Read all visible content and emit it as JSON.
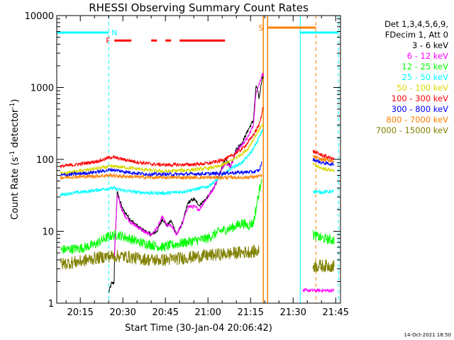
{
  "chart_data": {
    "type": "line",
    "title": "RHESSI Observing Summary Count Rates",
    "xlabel": "Start Time (30-Jan-04 20:06:42)",
    "ylabel_main": "Count Rate (s",
    "ylabel_sup1": "-1",
    "ylabel_mid": " detector",
    "ylabel_sup2": "-1",
    "ylabel_end": ")",
    "y_log": true,
    "ylim": [
      1,
      10000
    ],
    "xlim_minutes": [
      6.7,
      106.7
    ],
    "x_ticks": [
      {
        "label": "20:15",
        "m": 15
      },
      {
        "label": "20:30",
        "m": 30
      },
      {
        "label": "20:45",
        "m": 45
      },
      {
        "label": "21:00",
        "m": 60
      },
      {
        "label": "21:15",
        "m": 75
      },
      {
        "label": "21:30",
        "m": 90
      },
      {
        "label": "21:45",
        "m": 105
      }
    ],
    "y_ticks": [
      {
        "label": "1",
        "v": 1
      },
      {
        "label": "10",
        "v": 10
      },
      {
        "label": "100",
        "v": 100
      },
      {
        "label": "1000",
        "v": 1000
      },
      {
        "label": "10000",
        "v": 10000
      }
    ],
    "legend_header": [
      "Det 1,3,4,5,6,9,",
      "FDecim 1, Att 0"
    ],
    "legend_placement": "right",
    "series": [
      {
        "name": "3 - 6 keV",
        "color": "#000000",
        "points": [
          [
            25,
            1.4
          ],
          [
            26,
            1.9
          ],
          [
            26.9,
            1.9
          ],
          [
            27.1,
            5
          ],
          [
            28,
            35
          ],
          [
            30,
            20
          ],
          [
            33,
            14
          ],
          [
            36,
            11
          ],
          [
            38,
            10
          ],
          [
            40,
            9
          ],
          [
            42,
            10
          ],
          [
            44,
            15
          ],
          [
            45.5,
            12
          ],
          [
            47,
            14
          ],
          [
            49,
            9
          ],
          [
            51,
            13
          ],
          [
            53,
            25
          ],
          [
            55,
            28
          ],
          [
            57,
            23
          ],
          [
            58.8,
            27
          ],
          [
            60,
            30
          ],
          [
            62,
            40
          ],
          [
            64,
            60
          ],
          [
            66,
            100
          ],
          [
            68,
            80
          ],
          [
            70,
            140
          ],
          [
            72,
            170
          ],
          [
            74,
            250
          ],
          [
            76,
            350
          ],
          [
            77,
            1100
          ],
          [
            78,
            700
          ],
          [
            79,
            1300
          ],
          [
            79.5,
            1500
          ]
        ],
        "gaps": [
          [
            79.6,
            93.5
          ]
        ]
      },
      {
        "name": "6 - 12 keV",
        "color": "#ff00ff",
        "points": [
          [
            27,
            4
          ],
          [
            28,
            32
          ],
          [
            30,
            18
          ],
          [
            33,
            13
          ],
          [
            36,
            11
          ],
          [
            38,
            9.5
          ],
          [
            40,
            9
          ],
          [
            42,
            11
          ],
          [
            44,
            16
          ],
          [
            45.5,
            12
          ],
          [
            47,
            12
          ],
          [
            49,
            9
          ],
          [
            51,
            13
          ],
          [
            53,
            22
          ],
          [
            55,
            22
          ],
          [
            57,
            20
          ],
          [
            58.8,
            26
          ],
          [
            60,
            30
          ],
          [
            62,
            40
          ],
          [
            64,
            60
          ],
          [
            66,
            90
          ],
          [
            68,
            80
          ],
          [
            70,
            130
          ],
          [
            72,
            160
          ],
          [
            74,
            200
          ],
          [
            76,
            300
          ],
          [
            77,
            900
          ],
          [
            78,
            1100
          ],
          [
            79,
            1500
          ],
          [
            79.5,
            1550
          ]
        ],
        "extra": [
          [
            93.5,
            1.5
          ],
          [
            97,
            1.5
          ],
          [
            100,
            1.5
          ],
          [
            104.5,
            1.5
          ]
        ],
        "gaps": [
          [
            79.6,
            93.4
          ]
        ]
      },
      {
        "name": "12 - 25 keV",
        "color": "#00ff00",
        "points": [
          [
            8,
            5.5
          ],
          [
            15,
            5.8
          ],
          [
            20,
            6.5
          ],
          [
            25,
            8.5
          ],
          [
            28,
            9
          ],
          [
            32,
            8
          ],
          [
            36,
            7
          ],
          [
            40,
            6.5
          ],
          [
            44,
            6
          ],
          [
            48,
            6.5
          ],
          [
            52,
            7
          ],
          [
            56,
            7.5
          ],
          [
            60,
            8
          ],
          [
            64,
            10
          ],
          [
            68,
            11
          ],
          [
            72,
            13
          ],
          [
            74,
            12
          ],
          [
            76,
            13
          ],
          [
            78,
            35
          ],
          [
            79,
            60
          ]
        ],
        "extra": [
          [
            97,
            9
          ],
          [
            100,
            8
          ],
          [
            104.5,
            7.5
          ]
        ],
        "gaps": [
          [
            79.6,
            96.9
          ]
        ]
      },
      {
        "name": "25 - 50 keV",
        "color": "#00ffff",
        "points": [
          [
            8,
            32
          ],
          [
            12,
            34
          ],
          [
            18,
            36
          ],
          [
            22,
            38
          ],
          [
            26,
            40
          ],
          [
            30,
            37
          ],
          [
            35,
            35
          ],
          [
            40,
            34
          ],
          [
            45,
            34
          ],
          [
            50,
            35
          ],
          [
            55,
            38
          ],
          [
            60,
            42
          ],
          [
            64,
            55
          ],
          [
            68,
            75
          ],
          [
            72,
            90
          ],
          [
            74,
            110
          ],
          [
            76,
            140
          ],
          [
            78,
            200
          ],
          [
            79.5,
            270
          ]
        ],
        "extra": [
          [
            97,
            36
          ],
          [
            100,
            35
          ],
          [
            104.5,
            36
          ]
        ],
        "gaps": [
          [
            79.6,
            96.9
          ]
        ]
      },
      {
        "name": "50 - 100 keV",
        "color": "#d8d800",
        "points": [
          [
            8,
            63
          ],
          [
            12,
            66
          ],
          [
            18,
            72
          ],
          [
            22,
            76
          ],
          [
            26,
            80
          ],
          [
            30,
            78
          ],
          [
            35,
            74
          ],
          [
            40,
            70
          ],
          [
            45,
            68
          ],
          [
            50,
            70
          ],
          [
            55,
            72
          ],
          [
            60,
            75
          ],
          [
            64,
            80
          ],
          [
            68,
            95
          ],
          [
            72,
            120
          ],
          [
            74,
            140
          ],
          [
            76,
            190
          ],
          [
            78,
            260
          ],
          [
            79.5,
            300
          ]
        ],
        "extra": [
          [
            97,
            85
          ],
          [
            100,
            75
          ],
          [
            104.5,
            70
          ]
        ],
        "gaps": [
          [
            79.6,
            96.9
          ]
        ]
      },
      {
        "name": "100 - 300 keV",
        "color": "#ff0000",
        "points": [
          [
            8,
            80
          ],
          [
            12,
            83
          ],
          [
            18,
            90
          ],
          [
            22,
            96
          ],
          [
            26,
            108
          ],
          [
            30,
            100
          ],
          [
            35,
            92
          ],
          [
            40,
            86
          ],
          [
            45,
            84
          ],
          [
            50,
            84
          ],
          [
            55,
            85
          ],
          [
            60,
            88
          ],
          [
            64,
            95
          ],
          [
            68,
            110
          ],
          [
            72,
            140
          ],
          [
            74,
            170
          ],
          [
            76,
            220
          ],
          [
            78,
            300
          ],
          [
            79.5,
            550
          ]
        ],
        "extra": [
          [
            97,
            130
          ],
          [
            100,
            115
          ],
          [
            104.5,
            100
          ]
        ],
        "gaps": [
          [
            79.6,
            96.9
          ]
        ]
      },
      {
        "name": "300 - 800 keV",
        "color": "#0000ff",
        "points": [
          [
            8,
            60
          ],
          [
            12,
            62
          ],
          [
            18,
            65
          ],
          [
            22,
            68
          ],
          [
            26,
            72
          ],
          [
            30,
            68
          ],
          [
            35,
            64
          ],
          [
            40,
            62
          ],
          [
            45,
            62
          ],
          [
            50,
            62
          ],
          [
            55,
            63
          ],
          [
            60,
            63
          ],
          [
            64,
            64
          ],
          [
            68,
            65
          ],
          [
            72,
            66
          ],
          [
            76,
            67
          ],
          [
            78,
            70
          ],
          [
            79,
            90
          ]
        ],
        "extra": [
          [
            97,
            100
          ],
          [
            100,
            90
          ],
          [
            104.5,
            85
          ]
        ],
        "gaps": [
          [
            79.6,
            96.9
          ]
        ]
      },
      {
        "name": "800 - 7000 keV",
        "color": "#ff8000",
        "points": [
          [
            8,
            56
          ],
          [
            12,
            57
          ],
          [
            18,
            58
          ],
          [
            22,
            59
          ],
          [
            26,
            60
          ],
          [
            30,
            58
          ],
          [
            35,
            57
          ],
          [
            40,
            56
          ],
          [
            45,
            56
          ],
          [
            50,
            56
          ],
          [
            55,
            56
          ],
          [
            60,
            56
          ],
          [
            64,
            56
          ],
          [
            68,
            56
          ],
          [
            72,
            56
          ],
          [
            76,
            57
          ],
          [
            78,
            58
          ],
          [
            79,
            60
          ]
        ],
        "extra": [
          [
            97,
            110
          ],
          [
            100,
            100
          ],
          [
            104.5,
            95
          ]
        ],
        "gaps": [
          [
            79.6,
            96.9
          ]
        ]
      },
      {
        "name": "7000 - 15000 keV",
        "color": "#808000",
        "points": [
          [
            8,
            3.5
          ],
          [
            15,
            3.8
          ],
          [
            20,
            4.2
          ],
          [
            25,
            4.5
          ],
          [
            30,
            4.5
          ],
          [
            35,
            4.2
          ],
          [
            40,
            4.0
          ],
          [
            45,
            4.0
          ],
          [
            50,
            4.2
          ],
          [
            55,
            4.4
          ],
          [
            60,
            4.6
          ],
          [
            65,
            4.8
          ],
          [
            70,
            5.0
          ],
          [
            75,
            5.2
          ],
          [
            78,
            5.2
          ]
        ],
        "extra": [
          [
            97,
            3.3
          ],
          [
            100,
            3.3
          ],
          [
            104.5,
            3.3
          ]
        ],
        "gaps": [
          [
            79.6,
            96.9
          ]
        ]
      }
    ],
    "markers": {
      "N_label": "N",
      "F_label": "F",
      "S_label": "S",
      "night_level": 5800,
      "flare_level": 4500,
      "saa_level": 6800,
      "night_segments": [
        [
          6.7,
          25
        ],
        [
          92.5,
          106
        ]
      ],
      "flare_segments": [
        [
          27,
          33
        ],
        [
          40,
          42
        ],
        [
          45,
          47
        ],
        [
          50,
          66
        ]
      ],
      "saa_segment": [
        81,
        98
      ],
      "cyan_solid_lines": [
        6.7,
        92.5
      ],
      "cyan_dashed_lines": [
        25,
        106
      ],
      "orange_solid_lines": [
        79.5,
        81
      ],
      "orange_dashed_lines": [
        98
      ]
    },
    "timestamp": "14-Oct-2021 18:50"
  }
}
